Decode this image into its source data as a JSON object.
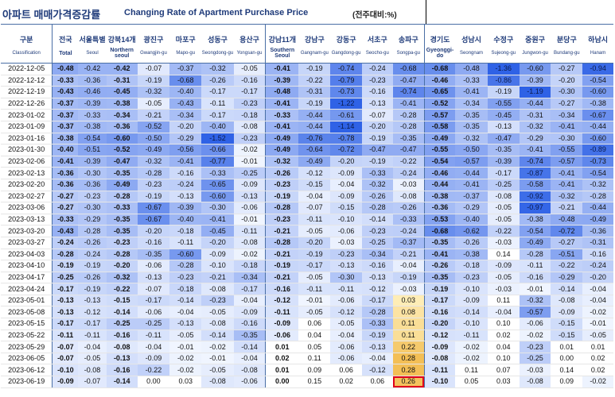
{
  "title_ko": "아파트 매매가격증감률",
  "title_en": "Changing Rate of Apartment Purchase Price",
  "unit": "(전주대비:%)",
  "chart_data": {
    "type": "table",
    "columns": [
      {
        "ko": "구분",
        "en": "Classification"
      },
      {
        "ko": "전국",
        "en": "Total"
      },
      {
        "ko": "서울특별",
        "en": "Seoul"
      },
      {
        "ko": "강북14개",
        "en": "Northern seoul"
      },
      {
        "ko": "광진구",
        "en": "Gwangjin-gu"
      },
      {
        "ko": "마포구",
        "en": "Mapo-gu"
      },
      {
        "ko": "성동구",
        "en": "Seongdong-gu"
      },
      {
        "ko": "용산구",
        "en": "Yongsan-gu"
      },
      {
        "ko": "강남11개",
        "en": "Southern Seoul"
      },
      {
        "ko": "강남구",
        "en": "Gangnam-gu"
      },
      {
        "ko": "강동구",
        "en": "Gangdong-gu"
      },
      {
        "ko": "서초구",
        "en": "Seocho-gu"
      },
      {
        "ko": "송파구",
        "en": "Songpa-gu"
      },
      {
        "ko": "경기도",
        "en": "Gyeonggi-do"
      },
      {
        "ko": "성남시",
        "en": "Seongnam"
      },
      {
        "ko": "수정구",
        "en": "Sujeong-gu"
      },
      {
        "ko": "중원구",
        "en": "Jungwon-gu"
      },
      {
        "ko": "분당구",
        "en": "Bundang-gu"
      },
      {
        "ko": "하남시",
        "en": "Hanam"
      }
    ],
    "rows": [
      {
        "date": "2022-12-05",
        "values": [
          "-0.48",
          "-0.42",
          "-0.42",
          "-0.07",
          "-0.37",
          "-0.32",
          "-0.05",
          "-0.41",
          "-0.19",
          "-0.74",
          "-0.24",
          "-0.68",
          "-0.68",
          "-0.48",
          "-1.36",
          "-0.60",
          "-0.27",
          "-0.94"
        ]
      },
      {
        "date": "2022-12-12",
        "values": [
          "-0.33",
          "-0.36",
          "-0.31",
          "-0.19",
          "-0.68",
          "-0.26",
          "-0.16",
          "-0.39",
          "-0.22",
          "-0.79",
          "-0.23",
          "-0.47",
          "-0.46",
          "-0.33",
          "-0.86",
          "-0.39",
          "-0.20",
          "-0.54"
        ]
      },
      {
        "date": "2022-12-19",
        "values": [
          "-0.43",
          "-0.46",
          "-0.45",
          "-0.32",
          "-0.40",
          "-0.17",
          "-0.17",
          "-0.48",
          "-0.31",
          "-0.73",
          "-0.16",
          "-0.74",
          "-0.65",
          "-0.41",
          "-0.19",
          "-1.19",
          "-0.30",
          "-0.60"
        ]
      },
      {
        "date": "2022-12-26",
        "values": [
          "-0.37",
          "-0.39",
          "-0.38",
          "-0.05",
          "-0.43",
          "-0.11",
          "-0.23",
          "-0.41",
          "-0.19",
          "-1.22",
          "-0.13",
          "-0.41",
          "-0.52",
          "-0.34",
          "-0.55",
          "-0.44",
          "-0.27",
          "-0.38"
        ]
      },
      {
        "date": "2023-01-02",
        "values": [
          "-0.37",
          "-0.33",
          "-0.34",
          "-0.21",
          "-0.34",
          "-0.17",
          "-0.18",
          "-0.33",
          "-0.44",
          "-0.61",
          "-0.07",
          "-0.28",
          "-0.57",
          "-0.35",
          "-0.45",
          "-0.31",
          "-0.34",
          "-0.67"
        ]
      },
      {
        "date": "2023-01-09",
        "values": [
          "-0.37",
          "-0.38",
          "-0.36",
          "-0.52",
          "-0.20",
          "-0.40",
          "-0.08",
          "-0.41",
          "-0.44",
          "-1.14",
          "-0.20",
          "-0.28",
          "-0.58",
          "-0.35",
          "-0.13",
          "-0.32",
          "-0.41",
          "-0.44"
        ]
      },
      {
        "date": "2023-01-16",
        "values": [
          "-0.38",
          "-0.54",
          "-0.60",
          "-0.50",
          "-0.29",
          "-1.52",
          "-0.23",
          "-0.49",
          "-0.76",
          "-0.78",
          "-0.19",
          "-0.35",
          "-0.49",
          "-0.32",
          "-0.47",
          "-0.29",
          "-0.30",
          "-0.60"
        ]
      },
      {
        "date": "2023-01-30",
        "values": [
          "-0.40",
          "-0.51",
          "-0.52",
          "-0.49",
          "-0.56",
          "-0.66",
          "-0.02",
          "-0.49",
          "-0.64",
          "-0.72",
          "-0.47",
          "-0.47",
          "-0.55",
          "-0.50",
          "-0.35",
          "-0.41",
          "-0.55",
          "-0.89"
        ]
      },
      {
        "date": "2023-02-06",
        "values": [
          "-0.41",
          "-0.39",
          "-0.47",
          "-0.32",
          "-0.41",
          "-0.77",
          "-0.01",
          "-0.32",
          "-0.49",
          "-0.20",
          "-0.19",
          "-0.22",
          "-0.54",
          "-0.57",
          "-0.39",
          "-0.74",
          "-0.57",
          "-0.73"
        ]
      },
      {
        "date": "2023-02-13",
        "values": [
          "-0.36",
          "-0.30",
          "-0.35",
          "-0.28",
          "-0.16",
          "-0.33",
          "-0.25",
          "-0.26",
          "-0.12",
          "-0.09",
          "-0.33",
          "-0.24",
          "-0.46",
          "-0.44",
          "-0.17",
          "-0.87",
          "-0.41",
          "-0.54"
        ]
      },
      {
        "date": "2023-02-20",
        "values": [
          "-0.36",
          "-0.36",
          "-0.49",
          "-0.23",
          "-0.24",
          "-0.65",
          "-0.09",
          "-0.23",
          "-0.15",
          "-0.04",
          "-0.32",
          "-0.03",
          "-0.44",
          "-0.41",
          "-0.25",
          "-0.58",
          "-0.41",
          "-0.32"
        ]
      },
      {
        "date": "2023-02-27",
        "values": [
          "-0.27",
          "-0.23",
          "-0.28",
          "-0.19",
          "-0.13",
          "-0.60",
          "-0.13",
          "-0.19",
          "-0.04",
          "-0.09",
          "-0.26",
          "-0.08",
          "-0.38",
          "-0.37",
          "-0.08",
          "-0.92",
          "-0.32",
          "-0.28"
        ]
      },
      {
        "date": "2023-03-06",
        "values": [
          "-0.27",
          "-0.30",
          "-0.33",
          "-0.67",
          "-0.39",
          "-0.30",
          "-0.06",
          "-0.28",
          "-0.07",
          "-0.15",
          "-0.28",
          "-0.26",
          "-0.36",
          "-0.29",
          "-0.05",
          "-0.97",
          "-0.21",
          "-0.44"
        ]
      },
      {
        "date": "2023-03-13",
        "values": [
          "-0.33",
          "-0.29",
          "-0.35",
          "-0.67",
          "-0.40",
          "-0.41",
          "-0.01",
          "-0.23",
          "-0.11",
          "-0.10",
          "-0.14",
          "-0.33",
          "-0.53",
          "-0.40",
          "-0.05",
          "-0.38",
          "-0.48",
          "-0.49"
        ]
      },
      {
        "date": "2023-03-20",
        "values": [
          "-0.43",
          "-0.28",
          "-0.35",
          "-0.20",
          "-0.18",
          "-0.45",
          "-0.11",
          "-0.21",
          "-0.05",
          "-0.06",
          "-0.23",
          "-0.24",
          "-0.68",
          "-0.62",
          "-0.22",
          "-0.54",
          "-0.72",
          "-0.36"
        ]
      },
      {
        "date": "2023-03-27",
        "values": [
          "-0.24",
          "-0.26",
          "-0.23",
          "-0.16",
          "-0.11",
          "-0.20",
          "-0.08",
          "-0.28",
          "-0.20",
          "-0.03",
          "-0.25",
          "-0.37",
          "-0.35",
          "-0.26",
          "-0.03",
          "-0.49",
          "-0.27",
          "-0.31"
        ]
      },
      {
        "date": "2023-04-03",
        "values": [
          "-0.28",
          "-0.24",
          "-0.28",
          "-0.35",
          "-0.60",
          "-0.09",
          "-0.02",
          "-0.21",
          "-0.19",
          "-0.23",
          "-0.34",
          "-0.21",
          "-0.41",
          "-0.38",
          "0.14",
          "-0.28",
          "-0.51",
          "-0.16"
        ]
      },
      {
        "date": "2023-04-10",
        "values": [
          "-0.19",
          "-0.19",
          "-0.20",
          "-0.06",
          "-0.28",
          "-0.10",
          "-0.18",
          "-0.19",
          "-0.17",
          "-0.13",
          "-0.16",
          "-0.04",
          "-0.26",
          "-0.18",
          "-0.09",
          "-0.11",
          "-0.22",
          "-0.24"
        ]
      },
      {
        "date": "2023-04-17",
        "values": [
          "-0.25",
          "-0.26",
          "-0.32",
          "-0.13",
          "-0.23",
          "-0.21",
          "-0.34",
          "-0.21",
          "-0.05",
          "-0.30",
          "-0.13",
          "-0.19",
          "-0.35",
          "-0.23",
          "-0.05",
          "-0.16",
          "-0.29",
          "-0.20"
        ]
      },
      {
        "date": "2023-04-24",
        "values": [
          "-0.17",
          "-0.19",
          "-0.22",
          "-0.07",
          "-0.18",
          "-0.08",
          "-0.17",
          "-0.16",
          "-0.11",
          "-0.11",
          "-0.12",
          "-0.03",
          "-0.19",
          "-0.10",
          "-0.03",
          "-0.01",
          "-0.14",
          "-0.04"
        ]
      },
      {
        "date": "2023-05-01",
        "values": [
          "-0.13",
          "-0.13",
          "-0.15",
          "-0.17",
          "-0.14",
          "-0.23",
          "-0.04",
          "-0.12",
          "-0.01",
          "-0.06",
          "-0.17",
          "0.03",
          "-0.17",
          "-0.09",
          "0.11",
          "-0.32",
          "-0.08",
          "-0.04"
        ]
      },
      {
        "date": "2023-05-08",
        "values": [
          "-0.13",
          "-0.12",
          "-0.14",
          "-0.06",
          "-0.04",
          "-0.05",
          "-0.09",
          "-0.11",
          "-0.05",
          "-0.12",
          "-0.28",
          "0.08",
          "-0.16",
          "-0.14",
          "-0.04",
          "-0.57",
          "-0.09",
          "-0.02"
        ]
      },
      {
        "date": "2023-05-15",
        "values": [
          "-0.17",
          "-0.17",
          "-0.25",
          "-0.25",
          "-0.13",
          "-0.08",
          "-0.16",
          "-0.09",
          "0.06",
          "-0.05",
          "-0.33",
          "0.11",
          "-0.20",
          "-0.10",
          "0.10",
          "-0.06",
          "-0.15",
          "-0.01"
        ]
      },
      {
        "date": "2023-05-22",
        "values": [
          "-0.11",
          "-0.11",
          "-0.16",
          "-0.11",
          "-0.05",
          "-0.14",
          "-0.35",
          "-0.06",
          "0.04",
          "-0.04",
          "-0.19",
          "0.11",
          "-0.12",
          "-0.11",
          "0.02",
          "-0.02",
          "-0.15",
          "-0.05"
        ]
      },
      {
        "date": "2023-05-29",
        "values": [
          "-0.07",
          "-0.04",
          "-0.08",
          "-0.04",
          "-0.01",
          "-0.02",
          "-0.14",
          "0.01",
          "0.05",
          "-0.06",
          "-0.13",
          "0.22",
          "-0.09",
          "-0.02",
          "0.04",
          "-0.23",
          "0.01",
          "0.01"
        ]
      },
      {
        "date": "2023-06-05",
        "values": [
          "-0.07",
          "-0.05",
          "-0.13",
          "-0.09",
          "-0.02",
          "-0.01",
          "-0.04",
          "0.02",
          "0.11",
          "-0.06",
          "-0.04",
          "0.28",
          "-0.08",
          "-0.02",
          "0.10",
          "-0.25",
          "0.00",
          "0.02"
        ]
      },
      {
        "date": "2023-06-12",
        "values": [
          "-0.10",
          "-0.08",
          "-0.16",
          "-0.22",
          "-0.02",
          "-0.05",
          "-0.08",
          "0.01",
          "0.09",
          "0.06",
          "-0.12",
          "0.28",
          "-0.11",
          "0.11",
          "0.07",
          "-0.03",
          "0.14",
          "0.02"
        ]
      },
      {
        "date": "2023-06-19",
        "values": [
          "-0.09",
          "-0.07",
          "-0.14",
          "0.00",
          "0.03",
          "-0.08",
          "-0.06",
          "0.00",
          "0.15",
          "0.02",
          "0.06",
          "0.26",
          "-0.10",
          "0.05",
          "0.03",
          "-0.08",
          "0.09",
          "-0.02"
        ]
      }
    ],
    "bold_columns": [
      1,
      3,
      8,
      13
    ],
    "highlight_column": 12,
    "highlight_cell": {
      "row": 27,
      "column": 12
    },
    "colors": {
      "negative_dark": "#2f62e6",
      "negative_light": "#f3f7ff",
      "positive_light": "#fff2c2",
      "positive_dark": "#f2bb4e",
      "highlight_border": "#e0001b",
      "header_text": "#1f3b7a"
    }
  }
}
